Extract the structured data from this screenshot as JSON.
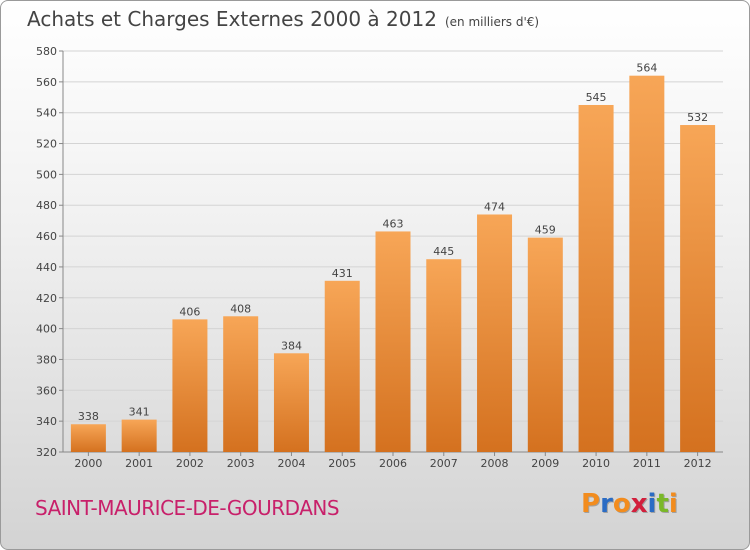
{
  "header": {
    "title": "Achats et Charges Externes 2000 à 2012",
    "subtitle": "(en milliers d'€)"
  },
  "footer": {
    "commune": "SAINT-MAURICE-DE-GOURDANS",
    "logo": "Proxiti"
  },
  "colors": {
    "bar_top": "#f7a657",
    "bar_bottom": "#d4711f",
    "commune": "#c8206a",
    "logo_letters": [
      "#f28c1e",
      "#2b6cc4",
      "#f28c1e",
      "#d21f3c",
      "#2b6cc4",
      "#7ab828",
      "#f28c1e"
    ]
  },
  "chart_data": {
    "type": "bar",
    "categories": [
      "2000",
      "2001",
      "2002",
      "2003",
      "2004",
      "2005",
      "2006",
      "2007",
      "2008",
      "2009",
      "2010",
      "2011",
      "2012"
    ],
    "values": [
      338,
      341,
      406,
      408,
      384,
      431,
      463,
      445,
      474,
      459,
      545,
      564,
      532
    ],
    "ylim": [
      320,
      580
    ],
    "yticks": [
      320,
      340,
      360,
      380,
      400,
      420,
      440,
      460,
      480,
      500,
      520,
      540,
      560,
      580
    ],
    "grid": true
  }
}
